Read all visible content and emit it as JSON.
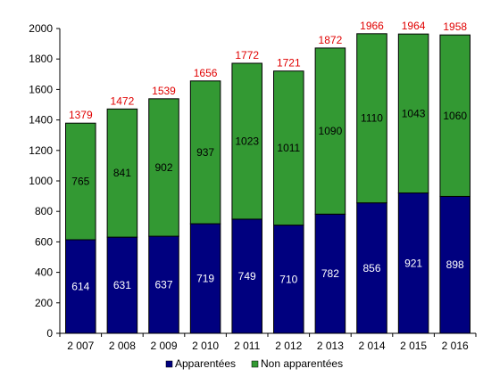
{
  "chart_data": {
    "type": "bar",
    "stacked": true,
    "title": "",
    "xlabel": "",
    "ylabel": "",
    "ylim": [
      0,
      2000
    ],
    "yticks": [
      0,
      200,
      400,
      600,
      800,
      1000,
      1200,
      1400,
      1600,
      1800,
      2000
    ],
    "grid": false,
    "legend_position": "bottom",
    "categories": [
      "2 007",
      "2 008",
      "2 009",
      "2 010",
      "2 011",
      "2 012",
      "2 013",
      "2 014",
      "2 015",
      "2 016"
    ],
    "series": [
      {
        "name": "Apparentées",
        "color": "#00007f",
        "label_color": "#ffffff",
        "values": [
          614,
          631,
          637,
          719,
          749,
          710,
          782,
          856,
          921,
          898
        ]
      },
      {
        "name": "Non apparentées",
        "color": "#339933",
        "label_color": "#000000",
        "values": [
          765,
          841,
          902,
          937,
          1023,
          1011,
          1090,
          1110,
          1043,
          1060
        ]
      }
    ],
    "totals": [
      1379,
      1472,
      1539,
      1656,
      1772,
      1721,
      1872,
      1966,
      1964,
      1958
    ],
    "totals_color": "#e00000"
  }
}
